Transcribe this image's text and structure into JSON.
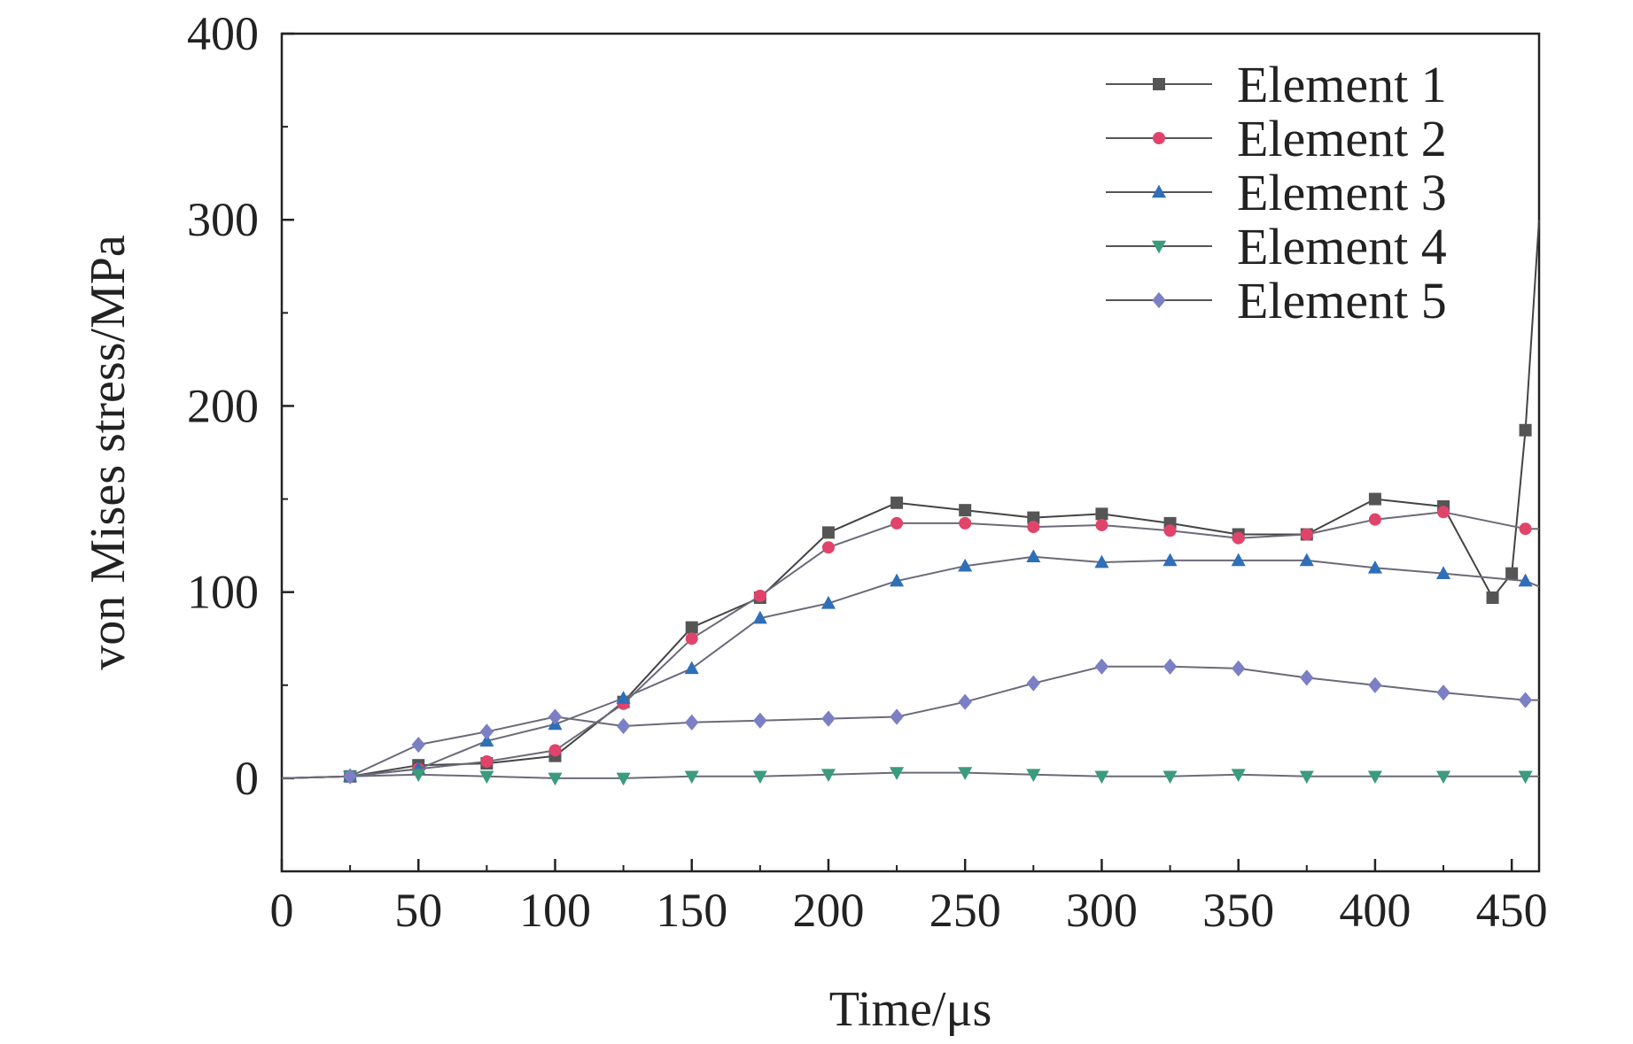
{
  "chart_data": {
    "type": "line",
    "title": "",
    "xlabel": "Time/μs",
    "ylabel": "von Mises stress/MPa",
    "xlim": [
      0,
      460
    ],
    "ylim": [
      -50,
      400
    ],
    "xticks": [
      "0",
      "50",
      "100",
      "150",
      "200",
      "250",
      "300",
      "350",
      "400",
      "450"
    ],
    "xtick_values": [
      0,
      50,
      100,
      150,
      200,
      250,
      300,
      350,
      400,
      450
    ],
    "yticks": [
      "0",
      "100",
      "200",
      "300",
      "400"
    ],
    "ytick_values": [
      0,
      100,
      200,
      300,
      400
    ],
    "grid": false,
    "legend_position": "top-right",
    "series": [
      {
        "name": "Element 1",
        "color": "#555555",
        "marker": "square",
        "x": [
          0,
          25,
          50,
          75,
          100,
          125,
          150,
          175,
          200,
          225,
          250,
          275,
          300,
          325,
          350,
          375,
          400,
          425,
          443,
          450,
          455,
          460
        ],
        "y": [
          0,
          1,
          7,
          8,
          12,
          41,
          81,
          97,
          132,
          148,
          144,
          140,
          142,
          137,
          131,
          131,
          150,
          146,
          97,
          110,
          187,
          300
        ]
      },
      {
        "name": "Element 2",
        "color": "#e0446a",
        "marker": "circle",
        "x": [
          0,
          25,
          50,
          75,
          100,
          125,
          150,
          175,
          200,
          225,
          250,
          275,
          300,
          325,
          350,
          375,
          400,
          425,
          455,
          460
        ],
        "y": [
          0,
          1,
          5,
          9,
          15,
          40,
          75,
          98,
          124,
          137,
          137,
          135,
          136,
          133,
          129,
          131,
          139,
          143,
          134,
          134
        ]
      },
      {
        "name": "Element 3",
        "color": "#2f6fb8",
        "marker": "triangle-up",
        "x": [
          0,
          25,
          50,
          75,
          100,
          125,
          150,
          175,
          200,
          225,
          250,
          275,
          300,
          325,
          350,
          375,
          400,
          425,
          455,
          460
        ],
        "y": [
          0,
          1,
          5,
          20,
          29,
          43,
          59,
          86,
          94,
          106,
          114,
          119,
          116,
          117,
          117,
          117,
          113,
          110,
          106,
          103
        ]
      },
      {
        "name": "Element 4",
        "color": "#3a9c7c",
        "marker": "triangle-down",
        "x": [
          0,
          25,
          50,
          75,
          100,
          125,
          150,
          175,
          200,
          225,
          250,
          275,
          300,
          325,
          350,
          375,
          400,
          425,
          455,
          460
        ],
        "y": [
          0,
          1,
          2,
          1,
          0,
          0,
          1,
          1,
          2,
          3,
          3,
          2,
          1,
          1,
          2,
          1,
          1,
          1,
          1,
          1
        ]
      },
      {
        "name": "Element 5",
        "color": "#7b7fc4",
        "marker": "diamond",
        "x": [
          0,
          25,
          50,
          75,
          100,
          125,
          150,
          175,
          200,
          225,
          250,
          275,
          300,
          325,
          350,
          375,
          400,
          425,
          455,
          460
        ],
        "y": [
          0,
          1,
          18,
          25,
          33,
          28,
          30,
          31,
          32,
          33,
          41,
          51,
          60,
          60,
          59,
          54,
          50,
          46,
          42,
          42
        ]
      }
    ]
  }
}
